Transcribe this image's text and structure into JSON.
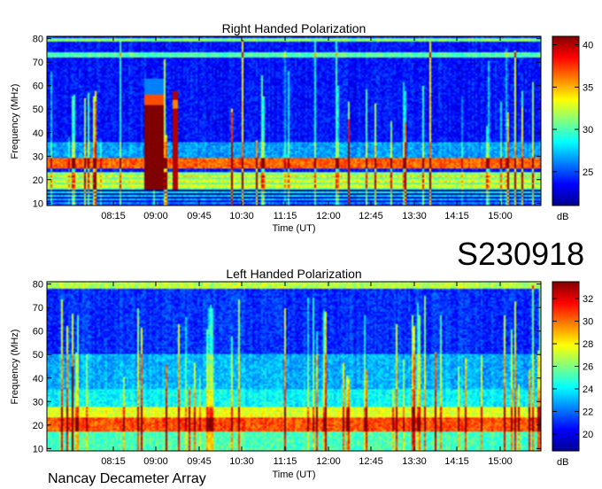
{
  "event_id": "S230918",
  "footer": "Nancay Decameter Array",
  "colors": {
    "colormap": [
      "#00008f",
      "#0000ff",
      "#0080ff",
      "#00ffff",
      "#80ff80",
      "#ffff00",
      "#ff8000",
      "#ff0000",
      "#800000"
    ]
  },
  "chart_data": [
    {
      "type": "heatmap",
      "title": "Right Handed Polarization",
      "xlabel": "Time (UT)",
      "ylabel": "Frequency (MHz)",
      "x_ticks": [
        "08:15",
        "09:00",
        "09:45",
        "10:30",
        "11:15",
        "12:00",
        "12:45",
        "13:30",
        "14:15",
        "15:00"
      ],
      "y_ticks": [
        10,
        20,
        30,
        40,
        50,
        60,
        70,
        80
      ],
      "ylim": [
        9,
        81
      ],
      "colorbar_label": "dB",
      "colorbar_ticks": [
        25,
        30,
        35,
        40
      ],
      "colorbar_range": [
        21,
        41
      ],
      "features": {
        "strong_burst_time": "09:00",
        "strong_burst_freq_range": [
          16,
          63
        ],
        "interference_band_mhz": [
          25,
          29
        ]
      }
    },
    {
      "type": "heatmap",
      "title": "Left Handed Polarization",
      "xlabel": "Time (UT)",
      "ylabel": "Frequency (MHz)",
      "x_ticks": [
        "08:15",
        "09:00",
        "09:45",
        "10:30",
        "11:15",
        "12:00",
        "12:45",
        "13:30",
        "14:15",
        "15:00"
      ],
      "y_ticks": [
        10,
        20,
        30,
        40,
        50,
        60,
        70,
        80
      ],
      "ylim": [
        9,
        81
      ],
      "colorbar_label": "dB",
      "colorbar_ticks": [
        20,
        22,
        24,
        26,
        28,
        30,
        32
      ],
      "colorbar_range": [
        18.5,
        33.5
      ],
      "features": {
        "interference_band_mhz": [
          17,
          28
        ]
      }
    }
  ]
}
